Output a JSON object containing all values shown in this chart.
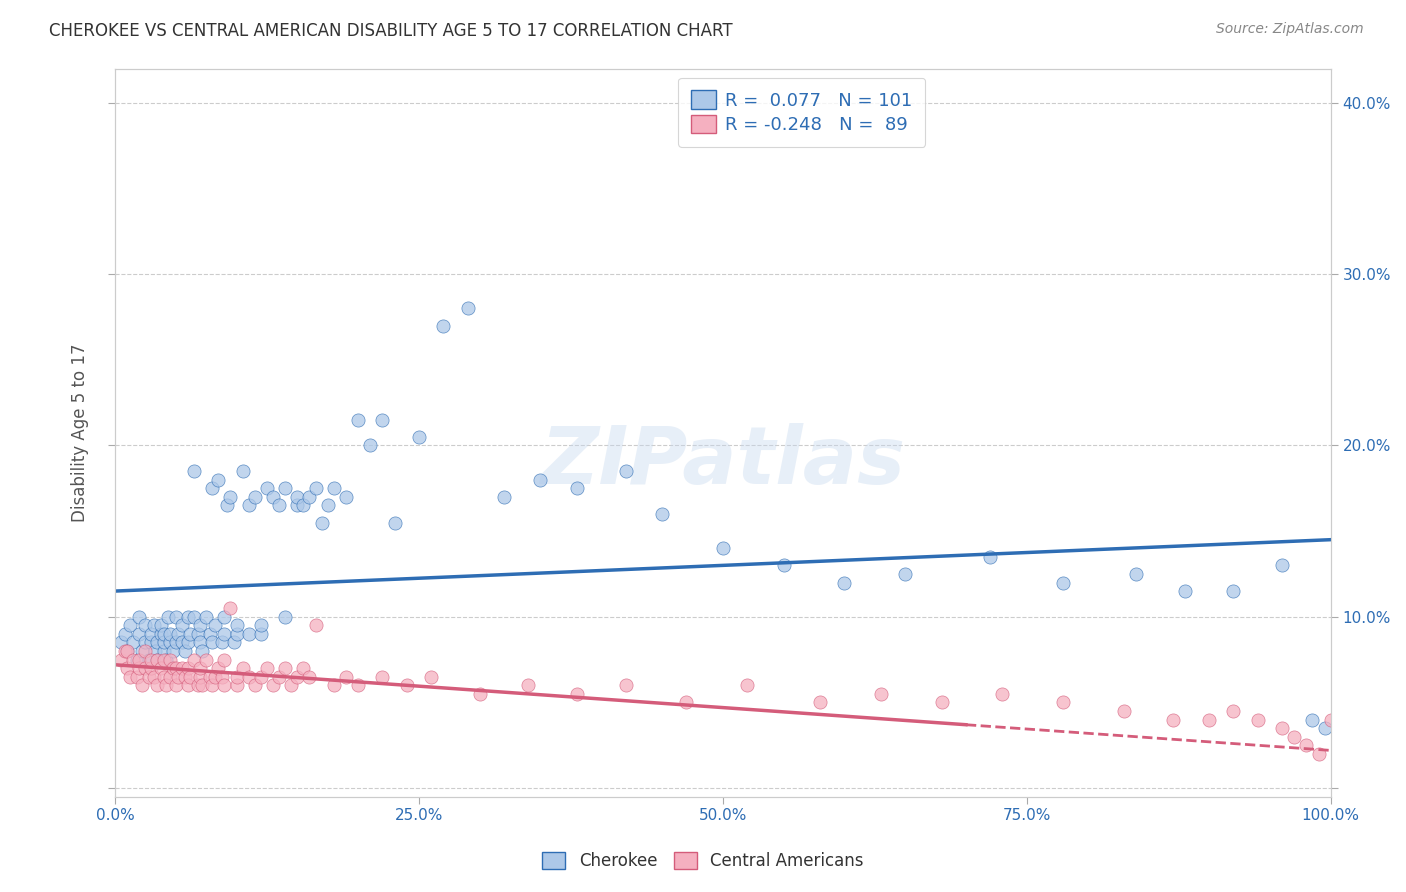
{
  "title": "CHEROKEE VS CENTRAL AMERICAN DISABILITY AGE 5 TO 17 CORRELATION CHART",
  "source": "Source: ZipAtlas.com",
  "ylabel": "Disability Age 5 to 17",
  "xlim": [
    0.0,
    1.0
  ],
  "ylim": [
    -0.005,
    0.42
  ],
  "yticks": [
    0.0,
    0.1,
    0.2,
    0.3,
    0.4
  ],
  "xticks": [
    0.0,
    0.25,
    0.5,
    0.75,
    1.0
  ],
  "cherokee_R": 0.077,
  "cherokee_N": 101,
  "central_american_R": -0.248,
  "central_american_N": 89,
  "cherokee_color": "#adc8e8",
  "central_american_color": "#f5b0c0",
  "cherokee_line_color": "#2e6db4",
  "central_american_line_color": "#d45c7a",
  "legend_text_color": "#2e6db4",
  "watermark": "ZIPatlas",
  "background_color": "#ffffff",
  "grid_color": "#cccccc",
  "cherokee_x": [
    0.005,
    0.008,
    0.01,
    0.012,
    0.015,
    0.018,
    0.02,
    0.02,
    0.022,
    0.025,
    0.025,
    0.028,
    0.03,
    0.03,
    0.032,
    0.033,
    0.035,
    0.035,
    0.038,
    0.038,
    0.04,
    0.04,
    0.04,
    0.042,
    0.044,
    0.045,
    0.045,
    0.048,
    0.05,
    0.05,
    0.052,
    0.055,
    0.055,
    0.058,
    0.06,
    0.06,
    0.062,
    0.065,
    0.065,
    0.068,
    0.07,
    0.07,
    0.072,
    0.075,
    0.078,
    0.08,
    0.08,
    0.082,
    0.085,
    0.088,
    0.09,
    0.09,
    0.092,
    0.095,
    0.098,
    0.1,
    0.1,
    0.105,
    0.11,
    0.11,
    0.115,
    0.12,
    0.12,
    0.125,
    0.13,
    0.135,
    0.14,
    0.14,
    0.15,
    0.15,
    0.155,
    0.16,
    0.165,
    0.17,
    0.175,
    0.18,
    0.19,
    0.2,
    0.21,
    0.22,
    0.23,
    0.25,
    0.27,
    0.29,
    0.32,
    0.35,
    0.38,
    0.42,
    0.45,
    0.5,
    0.55,
    0.6,
    0.65,
    0.72,
    0.78,
    0.84,
    0.88,
    0.92,
    0.96,
    0.985,
    0.995
  ],
  "cherokee_y": [
    0.085,
    0.09,
    0.08,
    0.095,
    0.085,
    0.075,
    0.09,
    0.1,
    0.08,
    0.085,
    0.095,
    0.075,
    0.085,
    0.09,
    0.095,
    0.08,
    0.075,
    0.085,
    0.09,
    0.095,
    0.08,
    0.085,
    0.09,
    0.075,
    0.1,
    0.085,
    0.09,
    0.08,
    0.085,
    0.1,
    0.09,
    0.095,
    0.085,
    0.08,
    0.1,
    0.085,
    0.09,
    0.185,
    0.1,
    0.09,
    0.085,
    0.095,
    0.08,
    0.1,
    0.09,
    0.175,
    0.085,
    0.095,
    0.18,
    0.085,
    0.09,
    0.1,
    0.165,
    0.17,
    0.085,
    0.09,
    0.095,
    0.185,
    0.09,
    0.165,
    0.17,
    0.09,
    0.095,
    0.175,
    0.17,
    0.165,
    0.1,
    0.175,
    0.165,
    0.17,
    0.165,
    0.17,
    0.175,
    0.155,
    0.165,
    0.175,
    0.17,
    0.215,
    0.2,
    0.215,
    0.155,
    0.205,
    0.27,
    0.28,
    0.17,
    0.18,
    0.175,
    0.185,
    0.16,
    0.14,
    0.13,
    0.12,
    0.125,
    0.135,
    0.12,
    0.125,
    0.115,
    0.115,
    0.13,
    0.04,
    0.035
  ],
  "central_american_x": [
    0.005,
    0.008,
    0.01,
    0.01,
    0.012,
    0.015,
    0.018,
    0.02,
    0.02,
    0.022,
    0.025,
    0.025,
    0.028,
    0.03,
    0.03,
    0.032,
    0.035,
    0.035,
    0.038,
    0.04,
    0.04,
    0.042,
    0.045,
    0.045,
    0.048,
    0.05,
    0.05,
    0.052,
    0.055,
    0.058,
    0.06,
    0.06,
    0.062,
    0.065,
    0.068,
    0.07,
    0.07,
    0.072,
    0.075,
    0.078,
    0.08,
    0.082,
    0.085,
    0.088,
    0.09,
    0.09,
    0.095,
    0.1,
    0.1,
    0.105,
    0.11,
    0.115,
    0.12,
    0.125,
    0.13,
    0.135,
    0.14,
    0.145,
    0.15,
    0.155,
    0.16,
    0.165,
    0.18,
    0.19,
    0.2,
    0.22,
    0.24,
    0.26,
    0.3,
    0.34,
    0.38,
    0.42,
    0.47,
    0.52,
    0.58,
    0.63,
    0.68,
    0.73,
    0.78,
    0.83,
    0.87,
    0.9,
    0.92,
    0.94,
    0.96,
    0.97,
    0.98,
    0.99,
    1.0
  ],
  "central_american_y": [
    0.075,
    0.08,
    0.07,
    0.08,
    0.065,
    0.075,
    0.065,
    0.07,
    0.075,
    0.06,
    0.07,
    0.08,
    0.065,
    0.07,
    0.075,
    0.065,
    0.06,
    0.075,
    0.07,
    0.065,
    0.075,
    0.06,
    0.065,
    0.075,
    0.07,
    0.06,
    0.07,
    0.065,
    0.07,
    0.065,
    0.06,
    0.07,
    0.065,
    0.075,
    0.06,
    0.065,
    0.07,
    0.06,
    0.075,
    0.065,
    0.06,
    0.065,
    0.07,
    0.065,
    0.06,
    0.075,
    0.105,
    0.06,
    0.065,
    0.07,
    0.065,
    0.06,
    0.065,
    0.07,
    0.06,
    0.065,
    0.07,
    0.06,
    0.065,
    0.07,
    0.065,
    0.095,
    0.06,
    0.065,
    0.06,
    0.065,
    0.06,
    0.065,
    0.055,
    0.06,
    0.055,
    0.06,
    0.05,
    0.06,
    0.05,
    0.055,
    0.05,
    0.055,
    0.05,
    0.045,
    0.04,
    0.04,
    0.045,
    0.04,
    0.035,
    0.03,
    0.025,
    0.02,
    0.04
  ]
}
